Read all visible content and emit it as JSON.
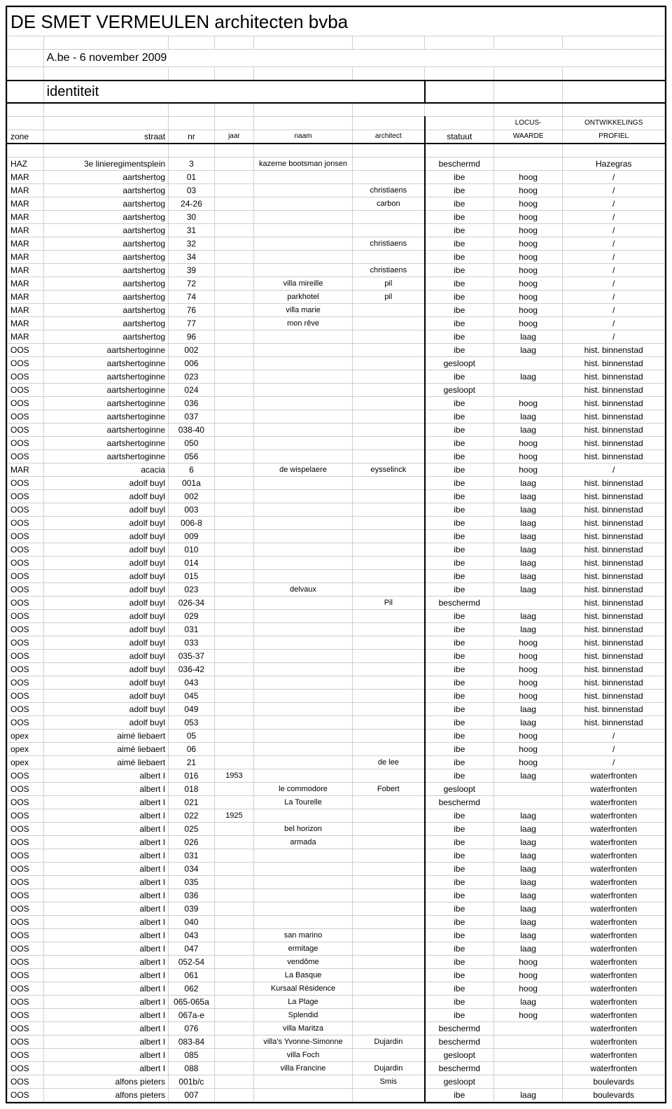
{
  "title": "DE SMET VERMEULEN architecten bvba",
  "subtitle": "A.be - 6 november 2009",
  "section": "identiteit",
  "columns": {
    "zone": "zone",
    "straat": "straat",
    "nr": "nr",
    "jaar": "jaar",
    "naam": "naam",
    "architect": "architect",
    "statuut": "statuut",
    "locus_top": "LOCUS-",
    "locus_bot": "WAARDE",
    "ont_top": "ONTWIKKELINGS",
    "ont_bot": "PROFIEL"
  },
  "col_widths_pct": [
    5.5,
    19,
    7,
    6,
    15,
    11,
    10.5,
    10.5,
    15.5
  ],
  "rows": [
    {
      "zone": "HAZ",
      "straat": "3e linieregimentsplein",
      "nr": "3",
      "jaar": "",
      "naam": "kazerne bootsman jonsen",
      "arch": "",
      "stat": "beschermd",
      "locus": "",
      "ont": "Hazegras"
    },
    {
      "zone": "MAR",
      "straat": "aartshertog",
      "nr": "01",
      "jaar": "",
      "naam": "",
      "arch": "",
      "stat": "ibe",
      "locus": "hoog",
      "ont": "/"
    },
    {
      "zone": "MAR",
      "straat": "aartshertog",
      "nr": "03",
      "jaar": "",
      "naam": "",
      "arch": "christiaens",
      "stat": "ibe",
      "locus": "hoog",
      "ont": "/"
    },
    {
      "zone": "MAR",
      "straat": "aartshertog",
      "nr": "24-26",
      "jaar": "",
      "naam": "",
      "arch": "carbon",
      "stat": "ibe",
      "locus": "hoog",
      "ont": "/"
    },
    {
      "zone": "MAR",
      "straat": "aartshertog",
      "nr": "30",
      "jaar": "",
      "naam": "",
      "arch": "",
      "stat": "ibe",
      "locus": "hoog",
      "ont": "/"
    },
    {
      "zone": "MAR",
      "straat": "aartshertog",
      "nr": "31",
      "jaar": "",
      "naam": "",
      "arch": "",
      "stat": "ibe",
      "locus": "hoog",
      "ont": "/"
    },
    {
      "zone": "MAR",
      "straat": "aartshertog",
      "nr": "32",
      "jaar": "",
      "naam": "",
      "arch": "christiaens",
      "stat": "ibe",
      "locus": "hoog",
      "ont": "/"
    },
    {
      "zone": "MAR",
      "straat": "aartshertog",
      "nr": "34",
      "jaar": "",
      "naam": "",
      "arch": "",
      "stat": "ibe",
      "locus": "hoog",
      "ont": "/"
    },
    {
      "zone": "MAR",
      "straat": "aartshertog",
      "nr": "39",
      "jaar": "",
      "naam": "",
      "arch": "christiaens",
      "stat": "ibe",
      "locus": "hoog",
      "ont": "/"
    },
    {
      "zone": "MAR",
      "straat": "aartshertog",
      "nr": "72",
      "jaar": "",
      "naam": "villa mireille",
      "arch": "pil",
      "stat": "ibe",
      "locus": "hoog",
      "ont": "/"
    },
    {
      "zone": "MAR",
      "straat": "aartshertog",
      "nr": "74",
      "jaar": "",
      "naam": "parkhotel",
      "arch": "pil",
      "stat": "ibe",
      "locus": "hoog",
      "ont": "/"
    },
    {
      "zone": "MAR",
      "straat": "aartshertog",
      "nr": "76",
      "jaar": "",
      "naam": "villa marie",
      "arch": "",
      "stat": "ibe",
      "locus": "hoog",
      "ont": "/"
    },
    {
      "zone": "MAR",
      "straat": "aartshertog",
      "nr": "77",
      "jaar": "",
      "naam": "mon rêve",
      "arch": "",
      "stat": "ibe",
      "locus": "hoog",
      "ont": "/"
    },
    {
      "zone": "MAR",
      "straat": "aartshertog",
      "nr": "96",
      "jaar": "",
      "naam": "",
      "arch": "",
      "stat": "ibe",
      "locus": "laag",
      "ont": "/"
    },
    {
      "zone": "OOS",
      "straat": "aartshertoginne",
      "nr": "002",
      "jaar": "",
      "naam": "",
      "arch": "",
      "stat": "ibe",
      "locus": "laag",
      "ont": "hist. binnenstad"
    },
    {
      "zone": "OOS",
      "straat": "aartshertoginne",
      "nr": "006",
      "jaar": "",
      "naam": "",
      "arch": "",
      "stat": "gesloopt",
      "locus": "",
      "ont": "hist. binnenstad"
    },
    {
      "zone": "OOS",
      "straat": "aartshertoginne",
      "nr": "023",
      "jaar": "",
      "naam": "",
      "arch": "",
      "stat": "ibe",
      "locus": "laag",
      "ont": "hist. binnenstad"
    },
    {
      "zone": "OOS",
      "straat": "aartshertoginne",
      "nr": "024",
      "jaar": "",
      "naam": "",
      "arch": "",
      "stat": "gesloopt",
      "locus": "",
      "ont": "hist. binnenstad"
    },
    {
      "zone": "OOS",
      "straat": "aartshertoginne",
      "nr": "036",
      "jaar": "",
      "naam": "",
      "arch": "",
      "stat": "ibe",
      "locus": "hoog",
      "ont": "hist. binnenstad"
    },
    {
      "zone": "OOS",
      "straat": "aartshertoginne",
      "nr": "037",
      "jaar": "",
      "naam": "",
      "arch": "",
      "stat": "ibe",
      "locus": "laag",
      "ont": "hist. binnenstad"
    },
    {
      "zone": "OOS",
      "straat": "aartshertoginne",
      "nr": "038-40",
      "jaar": "",
      "naam": "",
      "arch": "",
      "stat": "ibe",
      "locus": "laag",
      "ont": "hist. binnenstad"
    },
    {
      "zone": "OOS",
      "straat": "aartshertoginne",
      "nr": "050",
      "jaar": "",
      "naam": "",
      "arch": "",
      "stat": "ibe",
      "locus": "hoog",
      "ont": "hist. binnenstad"
    },
    {
      "zone": "OOS",
      "straat": "aartshertoginne",
      "nr": "056",
      "jaar": "",
      "naam": "",
      "arch": "",
      "stat": "ibe",
      "locus": "hoog",
      "ont": "hist. binnenstad"
    },
    {
      "zone": "MAR",
      "straat": "acacia",
      "nr": "6",
      "jaar": "",
      "naam": "de wispelaere",
      "arch": "eysselinck",
      "stat": "ibe",
      "locus": "hoog",
      "ont": "/"
    },
    {
      "zone": "OOS",
      "straat": "adolf buyl",
      "nr": "001a",
      "jaar": "",
      "naam": "",
      "arch": "",
      "stat": "ibe",
      "locus": "laag",
      "ont": "hist. binnenstad"
    },
    {
      "zone": "OOS",
      "straat": "adolf buyl",
      "nr": "002",
      "jaar": "",
      "naam": "",
      "arch": "",
      "stat": "ibe",
      "locus": "laag",
      "ont": "hist. binnenstad"
    },
    {
      "zone": "OOS",
      "straat": "adolf buyl",
      "nr": "003",
      "jaar": "",
      "naam": "",
      "arch": "",
      "stat": "ibe",
      "locus": "laag",
      "ont": "hist. binnenstad"
    },
    {
      "zone": "OOS",
      "straat": "adolf buyl",
      "nr": "006-8",
      "jaar": "",
      "naam": "",
      "arch": "",
      "stat": "ibe",
      "locus": "laag",
      "ont": "hist. binnenstad"
    },
    {
      "zone": "OOS",
      "straat": "adolf buyl",
      "nr": "009",
      "jaar": "",
      "naam": "",
      "arch": "",
      "stat": "ibe",
      "locus": "laag",
      "ont": "hist. binnenstad"
    },
    {
      "zone": "OOS",
      "straat": "adolf buyl",
      "nr": "010",
      "jaar": "",
      "naam": "",
      "arch": "",
      "stat": "ibe",
      "locus": "laag",
      "ont": "hist. binnenstad"
    },
    {
      "zone": "OOS",
      "straat": "adolf buyl",
      "nr": "014",
      "jaar": "",
      "naam": "",
      "arch": "",
      "stat": "ibe",
      "locus": "laag",
      "ont": "hist. binnenstad"
    },
    {
      "zone": "OOS",
      "straat": "adolf buyl",
      "nr": "015",
      "jaar": "",
      "naam": "",
      "arch": "",
      "stat": "ibe",
      "locus": "laag",
      "ont": "hist. binnenstad"
    },
    {
      "zone": "OOS",
      "straat": "adolf buyl",
      "nr": "023",
      "jaar": "",
      "naam": "delvaux",
      "arch": "",
      "stat": "ibe",
      "locus": "laag",
      "ont": "hist. binnenstad"
    },
    {
      "zone": "OOS",
      "straat": "adolf buyl",
      "nr": "026-34",
      "jaar": "",
      "naam": "",
      "arch": "Pil",
      "stat": "beschermd",
      "locus": "",
      "ont": "hist. binnenstad"
    },
    {
      "zone": "OOS",
      "straat": "adolf buyl",
      "nr": "029",
      "jaar": "",
      "naam": "",
      "arch": "",
      "stat": "ibe",
      "locus": "laag",
      "ont": "hist. binnenstad"
    },
    {
      "zone": "OOS",
      "straat": "adolf buyl",
      "nr": "031",
      "jaar": "",
      "naam": "",
      "arch": "",
      "stat": "ibe",
      "locus": "laag",
      "ont": "hist. binnenstad"
    },
    {
      "zone": "OOS",
      "straat": "adolf buyl",
      "nr": "033",
      "jaar": "",
      "naam": "",
      "arch": "",
      "stat": "ibe",
      "locus": "hoog",
      "ont": "hist. binnenstad"
    },
    {
      "zone": "OOS",
      "straat": "adolf buyl",
      "nr": "035-37",
      "jaar": "",
      "naam": "",
      "arch": "",
      "stat": "ibe",
      "locus": "hoog",
      "ont": "hist. binnenstad"
    },
    {
      "zone": "OOS",
      "straat": "adolf buyl",
      "nr": "036-42",
      "jaar": "",
      "naam": "",
      "arch": "",
      "stat": "ibe",
      "locus": "hoog",
      "ont": "hist. binnenstad"
    },
    {
      "zone": "OOS",
      "straat": "adolf buyl",
      "nr": "043",
      "jaar": "",
      "naam": "",
      "arch": "",
      "stat": "ibe",
      "locus": "hoog",
      "ont": "hist. binnenstad"
    },
    {
      "zone": "OOS",
      "straat": "adolf buyl",
      "nr": "045",
      "jaar": "",
      "naam": "",
      "arch": "",
      "stat": "ibe",
      "locus": "hoog",
      "ont": "hist. binnenstad"
    },
    {
      "zone": "OOS",
      "straat": "adolf buyl",
      "nr": "049",
      "jaar": "",
      "naam": "",
      "arch": "",
      "stat": "ibe",
      "locus": "laag",
      "ont": "hist. binnenstad"
    },
    {
      "zone": "OOS",
      "straat": "adolf buyl",
      "nr": "053",
      "jaar": "",
      "naam": "",
      "arch": "",
      "stat": "ibe",
      "locus": "laag",
      "ont": "hist. binnenstad"
    },
    {
      "zone": "opex",
      "straat": "aimé liebaert",
      "nr": "05",
      "jaar": "",
      "naam": "",
      "arch": "",
      "stat": "ibe",
      "locus": "hoog",
      "ont": "/"
    },
    {
      "zone": "opex",
      "straat": "aimé liebaert",
      "nr": "06",
      "jaar": "",
      "naam": "",
      "arch": "",
      "stat": "ibe",
      "locus": "hoog",
      "ont": "/"
    },
    {
      "zone": "opex",
      "straat": "aimé liebaert",
      "nr": "21",
      "jaar": "",
      "naam": "",
      "arch": "de lee",
      "stat": "ibe",
      "locus": "hoog",
      "ont": "/"
    },
    {
      "zone": "OOS",
      "straat": "albert I",
      "nr": "016",
      "jaar": "1953",
      "naam": "",
      "arch": "",
      "stat": "ibe",
      "locus": "laag",
      "ont": "waterfronten"
    },
    {
      "zone": "OOS",
      "straat": "albert I",
      "nr": "018",
      "jaar": "",
      "naam": "le commodore",
      "arch": "Fobert",
      "stat": "gesloopt",
      "locus": "",
      "ont": "waterfronten"
    },
    {
      "zone": "OOS",
      "straat": "albert I",
      "nr": "021",
      "jaar": "",
      "naam": "La Tourelle",
      "arch": "",
      "stat": "beschermd",
      "locus": "",
      "ont": "waterfronten"
    },
    {
      "zone": "OOS",
      "straat": "albert I",
      "nr": "022",
      "jaar": "1925",
      "naam": "",
      "arch": "",
      "stat": "ibe",
      "locus": "laag",
      "ont": "waterfronten"
    },
    {
      "zone": "OOS",
      "straat": "albert I",
      "nr": "025",
      "jaar": "",
      "naam": "bel horizon",
      "arch": "",
      "stat": "ibe",
      "locus": "laag",
      "ont": "waterfronten"
    },
    {
      "zone": "OOS",
      "straat": "albert I",
      "nr": "026",
      "jaar": "",
      "naam": "armada",
      "arch": "",
      "stat": "ibe",
      "locus": "laag",
      "ont": "waterfronten"
    },
    {
      "zone": "OOS",
      "straat": "albert I",
      "nr": "031",
      "jaar": "",
      "naam": "",
      "arch": "",
      "stat": "ibe",
      "locus": "laag",
      "ont": "waterfronten"
    },
    {
      "zone": "OOS",
      "straat": "albert I",
      "nr": "034",
      "jaar": "",
      "naam": "",
      "arch": "",
      "stat": "ibe",
      "locus": "laag",
      "ont": "waterfronten"
    },
    {
      "zone": "OOS",
      "straat": "albert I",
      "nr": "035",
      "jaar": "",
      "naam": "",
      "arch": "",
      "stat": "ibe",
      "locus": "laag",
      "ont": "waterfronten"
    },
    {
      "zone": "OOS",
      "straat": "albert I",
      "nr": "036",
      "jaar": "",
      "naam": "",
      "arch": "",
      "stat": "ibe",
      "locus": "laag",
      "ont": "waterfronten"
    },
    {
      "zone": "OOS",
      "straat": "albert I",
      "nr": "039",
      "jaar": "",
      "naam": "",
      "arch": "",
      "stat": "ibe",
      "locus": "laag",
      "ont": "waterfronten"
    },
    {
      "zone": "OOS",
      "straat": "albert I",
      "nr": "040",
      "jaar": "",
      "naam": "",
      "arch": "",
      "stat": "ibe",
      "locus": "laag",
      "ont": "waterfronten"
    },
    {
      "zone": "OOS",
      "straat": "albert I",
      "nr": "043",
      "jaar": "",
      "naam": "san marino",
      "arch": "",
      "stat": "ibe",
      "locus": "laag",
      "ont": "waterfronten"
    },
    {
      "zone": "OOS",
      "straat": "albert I",
      "nr": "047",
      "jaar": "",
      "naam": "ermitage",
      "arch": "",
      "stat": "ibe",
      "locus": "laag",
      "ont": "waterfronten"
    },
    {
      "zone": "OOS",
      "straat": "albert I",
      "nr": "052-54",
      "jaar": "",
      "naam": "vendôme",
      "arch": "",
      "stat": "ibe",
      "locus": "hoog",
      "ont": "waterfronten"
    },
    {
      "zone": "OOS",
      "straat": "albert I",
      "nr": "061",
      "jaar": "",
      "naam": "La Basque",
      "arch": "",
      "stat": "ibe",
      "locus": "hoog",
      "ont": "waterfronten"
    },
    {
      "zone": "OOS",
      "straat": "albert I",
      "nr": "062",
      "jaar": "",
      "naam": "Kursaal Résidence",
      "arch": "",
      "stat": "ibe",
      "locus": "hoog",
      "ont": "waterfronten"
    },
    {
      "zone": "OOS",
      "straat": "albert I",
      "nr": "065-065a",
      "jaar": "",
      "naam": "La Plage",
      "arch": "",
      "stat": "ibe",
      "locus": "laag",
      "ont": "waterfronten"
    },
    {
      "zone": "OOS",
      "straat": "albert I",
      "nr": "067a-e",
      "jaar": "",
      "naam": "Splendid",
      "arch": "",
      "stat": "ibe",
      "locus": "hoog",
      "ont": "waterfronten"
    },
    {
      "zone": "OOS",
      "straat": "albert I",
      "nr": "076",
      "jaar": "",
      "naam": "villa Maritza",
      "arch": "",
      "stat": "beschermd",
      "locus": "",
      "ont": "waterfronten"
    },
    {
      "zone": "OOS",
      "straat": "albert I",
      "nr": "083-84",
      "jaar": "",
      "naam": "villa's Yvonne-Simonne",
      "arch": "Dujardin",
      "stat": "beschermd",
      "locus": "",
      "ont": "waterfronten"
    },
    {
      "zone": "OOS",
      "straat": "albert I",
      "nr": "085",
      "jaar": "",
      "naam": "villa Foch",
      "arch": "",
      "stat": "gesloopt",
      "locus": "",
      "ont": "waterfronten"
    },
    {
      "zone": "OOS",
      "straat": "albert I",
      "nr": "088",
      "jaar": "",
      "naam": "villa Francine",
      "arch": "Dujardin",
      "stat": "beschermd",
      "locus": "",
      "ont": "waterfronten"
    },
    {
      "zone": "OOS",
      "straat": "alfons pieters",
      "nr": "001b/c",
      "jaar": "",
      "naam": "",
      "arch": "Smis",
      "stat": "gesloopt",
      "locus": "",
      "ont": "boulevards"
    },
    {
      "zone": "OOS",
      "straat": "alfons pieters",
      "nr": "007",
      "jaar": "",
      "naam": "",
      "arch": "",
      "stat": "ibe",
      "locus": "laag",
      "ont": "boulevards"
    }
  ]
}
